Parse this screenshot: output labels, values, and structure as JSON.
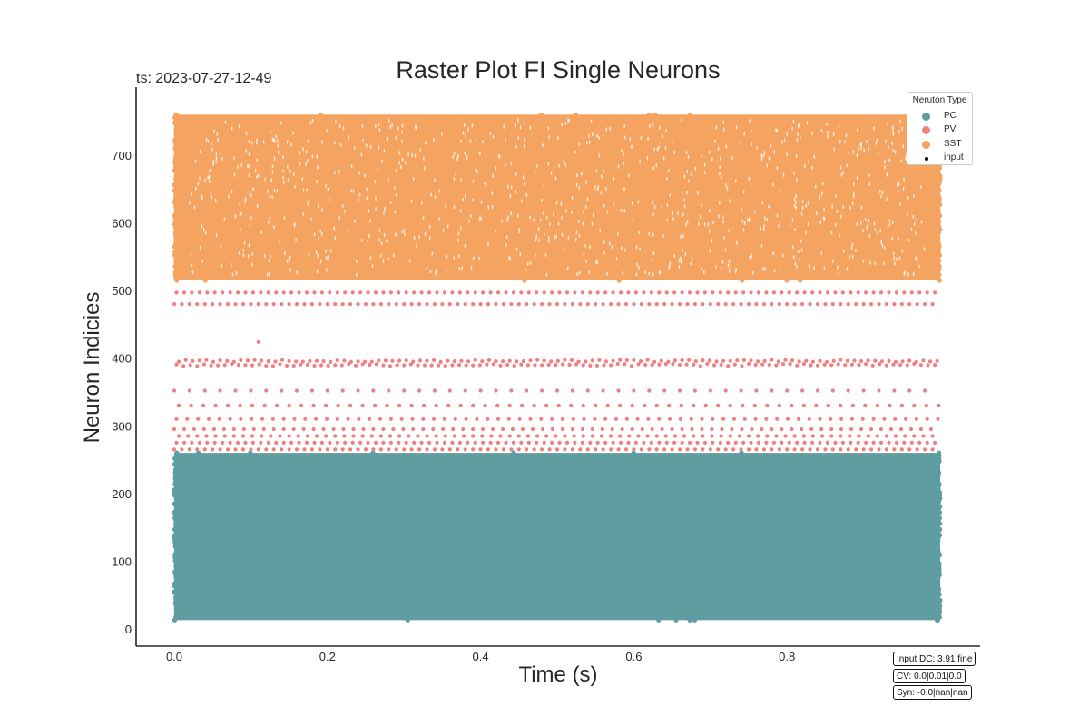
{
  "figure": {
    "title": "Raster Plot FI Single Neurons",
    "timestamp": "ts: 2023-07-27-12-49",
    "stats": [
      "Input DC: 3.91 fine",
      "CV: 0.0|0.01|0.0",
      "Syn: -0.0|nan|nan"
    ]
  },
  "chart_data": {
    "type": "scatter",
    "title": "Raster Plot FI Single Neurons",
    "xlabel": "Time (s)",
    "ylabel": "Neuron Indicies",
    "xlim": [
      -0.05,
      1.05
    ],
    "ylim": [
      -25,
      785
    ],
    "xticks": [
      0.0,
      0.2,
      0.4,
      0.6,
      0.8
    ],
    "xtick_labels": [
      "0.0",
      "0.2",
      "0.4",
      "0.6",
      "0.8"
    ],
    "yticks": [
      0,
      100,
      200,
      300,
      400,
      500,
      600,
      700
    ],
    "ytick_labels": [
      "0",
      "100",
      "200",
      "300",
      "400",
      "500",
      "600",
      "700"
    ],
    "grid": false,
    "legend": {
      "title": "Neruton Type",
      "placement": "upper right",
      "entries": [
        {
          "label": "PC",
          "color": "#5f9ea0"
        },
        {
          "label": "PV",
          "color": "#f08080"
        },
        {
          "label": "SST",
          "color": "#f4a460"
        },
        {
          "label": "input",
          "color": "#000000"
        }
      ]
    },
    "series": [
      {
        "name": "PC",
        "color": "#5f9ea0",
        "neuron_range": [
          13,
          260
        ],
        "time_range": [
          0.0,
          1.0
        ],
        "firing": "dense"
      },
      {
        "name": "PV",
        "color": "#f08080",
        "neuron_range": [
          265,
          500
        ],
        "time_range": [
          0.0,
          1.0
        ],
        "firing": "regular",
        "rows": [
          {
            "neuron": 265,
            "interval": 0.01
          },
          {
            "neuron": 275,
            "interval": 0.01
          },
          {
            "neuron": 285,
            "interval": 0.012
          },
          {
            "neuron": 295,
            "interval": 0.013
          },
          {
            "neuron": 310,
            "interval": 0.014
          },
          {
            "neuron": 330,
            "interval": 0.016
          },
          {
            "neuron": 352,
            "interval": 0.02
          },
          {
            "neuron": 390,
            "interval": 0.009
          },
          {
            "neuron": 396,
            "interval": 0.009
          },
          {
            "neuron": 480,
            "interval": 0.01
          },
          {
            "neuron": 497,
            "interval": 0.01
          }
        ],
        "extra_points": [
          {
            "x": 0.11,
            "y": 424
          }
        ]
      },
      {
        "name": "SST",
        "color": "#f4a460",
        "neuron_range": [
          515,
          760
        ],
        "time_range": [
          0.0,
          1.0
        ],
        "firing": "dense"
      }
    ]
  }
}
